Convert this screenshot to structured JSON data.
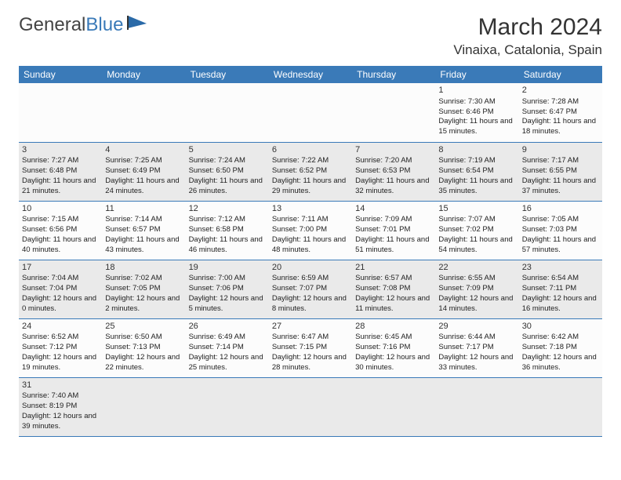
{
  "brand": {
    "text1": "General",
    "text2": "Blue",
    "logo_color": "#2a6aa8"
  },
  "title": "March 2024",
  "location": "Vinaixa, Catalonia, Spain",
  "header_bg": "#3a7ab8",
  "row_border": "#3a7ab8",
  "alt_row_bg": "#eaeaea",
  "day_headers": [
    "Sunday",
    "Monday",
    "Tuesday",
    "Wednesday",
    "Thursday",
    "Friday",
    "Saturday"
  ],
  "weeks": [
    [
      null,
      null,
      null,
      null,
      null,
      {
        "n": "1",
        "sr": "Sunrise: 7:30 AM",
        "ss": "Sunset: 6:46 PM",
        "dl": "Daylight: 11 hours and 15 minutes."
      },
      {
        "n": "2",
        "sr": "Sunrise: 7:28 AM",
        "ss": "Sunset: 6:47 PM",
        "dl": "Daylight: 11 hours and 18 minutes."
      }
    ],
    [
      {
        "n": "3",
        "sr": "Sunrise: 7:27 AM",
        "ss": "Sunset: 6:48 PM",
        "dl": "Daylight: 11 hours and 21 minutes."
      },
      {
        "n": "4",
        "sr": "Sunrise: 7:25 AM",
        "ss": "Sunset: 6:49 PM",
        "dl": "Daylight: 11 hours and 24 minutes."
      },
      {
        "n": "5",
        "sr": "Sunrise: 7:24 AM",
        "ss": "Sunset: 6:50 PM",
        "dl": "Daylight: 11 hours and 26 minutes."
      },
      {
        "n": "6",
        "sr": "Sunrise: 7:22 AM",
        "ss": "Sunset: 6:52 PM",
        "dl": "Daylight: 11 hours and 29 minutes."
      },
      {
        "n": "7",
        "sr": "Sunrise: 7:20 AM",
        "ss": "Sunset: 6:53 PM",
        "dl": "Daylight: 11 hours and 32 minutes."
      },
      {
        "n": "8",
        "sr": "Sunrise: 7:19 AM",
        "ss": "Sunset: 6:54 PM",
        "dl": "Daylight: 11 hours and 35 minutes."
      },
      {
        "n": "9",
        "sr": "Sunrise: 7:17 AM",
        "ss": "Sunset: 6:55 PM",
        "dl": "Daylight: 11 hours and 37 minutes."
      }
    ],
    [
      {
        "n": "10",
        "sr": "Sunrise: 7:15 AM",
        "ss": "Sunset: 6:56 PM",
        "dl": "Daylight: 11 hours and 40 minutes."
      },
      {
        "n": "11",
        "sr": "Sunrise: 7:14 AM",
        "ss": "Sunset: 6:57 PM",
        "dl": "Daylight: 11 hours and 43 minutes."
      },
      {
        "n": "12",
        "sr": "Sunrise: 7:12 AM",
        "ss": "Sunset: 6:58 PM",
        "dl": "Daylight: 11 hours and 46 minutes."
      },
      {
        "n": "13",
        "sr": "Sunrise: 7:11 AM",
        "ss": "Sunset: 7:00 PM",
        "dl": "Daylight: 11 hours and 48 minutes."
      },
      {
        "n": "14",
        "sr": "Sunrise: 7:09 AM",
        "ss": "Sunset: 7:01 PM",
        "dl": "Daylight: 11 hours and 51 minutes."
      },
      {
        "n": "15",
        "sr": "Sunrise: 7:07 AM",
        "ss": "Sunset: 7:02 PM",
        "dl": "Daylight: 11 hours and 54 minutes."
      },
      {
        "n": "16",
        "sr": "Sunrise: 7:05 AM",
        "ss": "Sunset: 7:03 PM",
        "dl": "Daylight: 11 hours and 57 minutes."
      }
    ],
    [
      {
        "n": "17",
        "sr": "Sunrise: 7:04 AM",
        "ss": "Sunset: 7:04 PM",
        "dl": "Daylight: 12 hours and 0 minutes."
      },
      {
        "n": "18",
        "sr": "Sunrise: 7:02 AM",
        "ss": "Sunset: 7:05 PM",
        "dl": "Daylight: 12 hours and 2 minutes."
      },
      {
        "n": "19",
        "sr": "Sunrise: 7:00 AM",
        "ss": "Sunset: 7:06 PM",
        "dl": "Daylight: 12 hours and 5 minutes."
      },
      {
        "n": "20",
        "sr": "Sunrise: 6:59 AM",
        "ss": "Sunset: 7:07 PM",
        "dl": "Daylight: 12 hours and 8 minutes."
      },
      {
        "n": "21",
        "sr": "Sunrise: 6:57 AM",
        "ss": "Sunset: 7:08 PM",
        "dl": "Daylight: 12 hours and 11 minutes."
      },
      {
        "n": "22",
        "sr": "Sunrise: 6:55 AM",
        "ss": "Sunset: 7:09 PM",
        "dl": "Daylight: 12 hours and 14 minutes."
      },
      {
        "n": "23",
        "sr": "Sunrise: 6:54 AM",
        "ss": "Sunset: 7:11 PM",
        "dl": "Daylight: 12 hours and 16 minutes."
      }
    ],
    [
      {
        "n": "24",
        "sr": "Sunrise: 6:52 AM",
        "ss": "Sunset: 7:12 PM",
        "dl": "Daylight: 12 hours and 19 minutes."
      },
      {
        "n": "25",
        "sr": "Sunrise: 6:50 AM",
        "ss": "Sunset: 7:13 PM",
        "dl": "Daylight: 12 hours and 22 minutes."
      },
      {
        "n": "26",
        "sr": "Sunrise: 6:49 AM",
        "ss": "Sunset: 7:14 PM",
        "dl": "Daylight: 12 hours and 25 minutes."
      },
      {
        "n": "27",
        "sr": "Sunrise: 6:47 AM",
        "ss": "Sunset: 7:15 PM",
        "dl": "Daylight: 12 hours and 28 minutes."
      },
      {
        "n": "28",
        "sr": "Sunrise: 6:45 AM",
        "ss": "Sunset: 7:16 PM",
        "dl": "Daylight: 12 hours and 30 minutes."
      },
      {
        "n": "29",
        "sr": "Sunrise: 6:44 AM",
        "ss": "Sunset: 7:17 PM",
        "dl": "Daylight: 12 hours and 33 minutes."
      },
      {
        "n": "30",
        "sr": "Sunrise: 6:42 AM",
        "ss": "Sunset: 7:18 PM",
        "dl": "Daylight: 12 hours and 36 minutes."
      }
    ],
    [
      {
        "n": "31",
        "sr": "Sunrise: 7:40 AM",
        "ss": "Sunset: 8:19 PM",
        "dl": "Daylight: 12 hours and 39 minutes."
      },
      null,
      null,
      null,
      null,
      null,
      null
    ]
  ]
}
